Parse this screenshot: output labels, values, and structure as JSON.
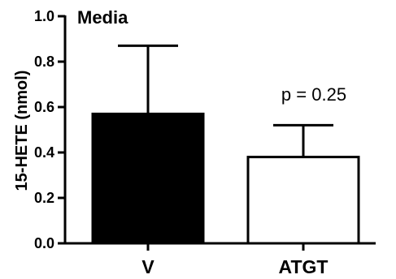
{
  "chart_data": {
    "type": "bar",
    "title": "Media",
    "xlabel": "",
    "ylabel": "15-HETE (nmol)",
    "categories": [
      "V",
      "ATGT"
    ],
    "values": [
      0.57,
      0.38
    ],
    "errors": [
      0.3,
      0.14
    ],
    "bar_fills": [
      "#000000",
      "#ffffff"
    ],
    "ylim": [
      0,
      1.0
    ],
    "yticks": [
      0.0,
      0.2,
      0.4,
      0.6,
      0.8,
      1.0
    ],
    "ytick_labels": [
      "0.0",
      "0.2",
      "0.4",
      "0.6",
      "0.8",
      "1.0"
    ],
    "annotation": "p = 0.25",
    "grid": false,
    "legend": "none"
  }
}
